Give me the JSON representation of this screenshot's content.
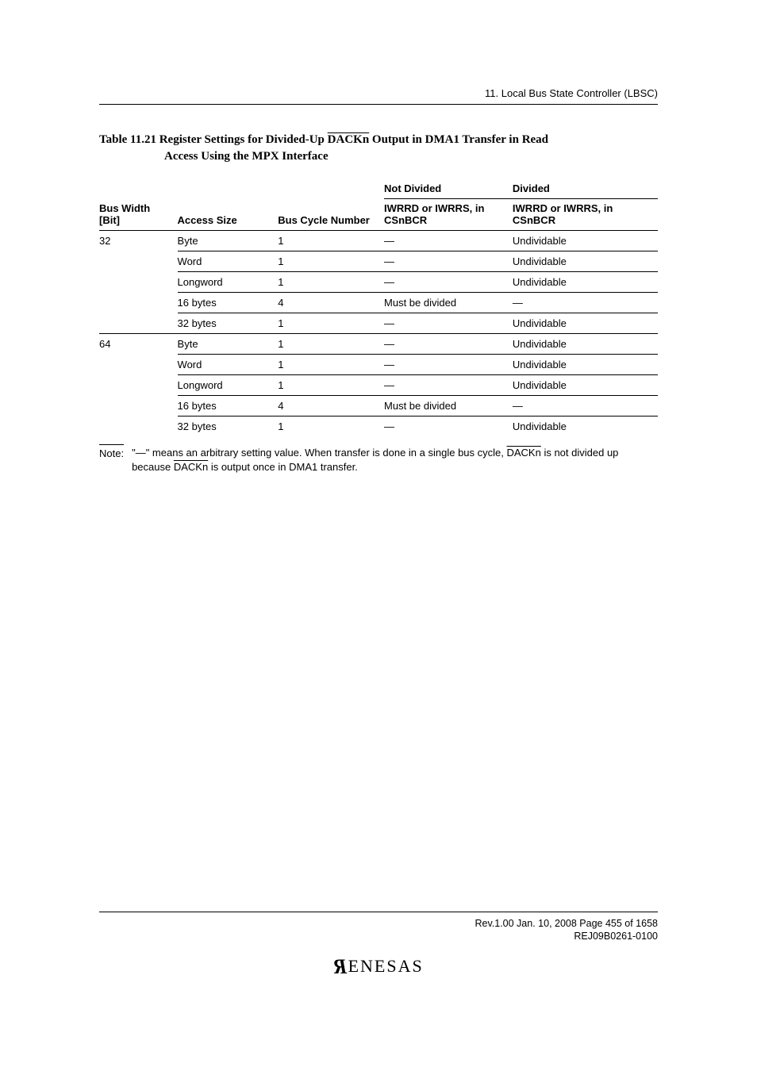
{
  "running_head": "11.   Local Bus State Controller (LBSC)",
  "caption": {
    "prefix": "Table 11.21  Register Settings for Divided-Up ",
    "overline1": "DACKn",
    "suffix1": " Output in DMA1 Transfer in Read",
    "line2": "Access Using the MPX Interface"
  },
  "headers": {
    "sup_not_divided": "Not Divided",
    "sup_divided": "Divided",
    "bus_width": "Bus Width [Bit]",
    "access_size": "Access Size",
    "bus_cycle_number": "Bus Cycle Number",
    "iwrrd_not": "IWRRD or IWRRS, in CSnBCR",
    "iwrrd_div": "IWRRD or IWRRS, in CSnBCR"
  },
  "mdash": "—",
  "undividable": "Undividable",
  "must_be_divided": "Must be divided",
  "rows": [
    {
      "bw": "32",
      "as": "Byte",
      "bcn": "1",
      "nd": "—",
      "dv": "Undividable"
    },
    {
      "bw": "",
      "as": "Word",
      "bcn": "1",
      "nd": "—",
      "dv": "Undividable"
    },
    {
      "bw": "",
      "as": "Longword",
      "bcn": "1",
      "nd": "—",
      "dv": "Undividable"
    },
    {
      "bw": "",
      "as": "16 bytes",
      "bcn": "4",
      "nd": "Must be divided",
      "dv": "—"
    },
    {
      "bw": "",
      "as": "32 bytes",
      "bcn": "1",
      "nd": "—",
      "dv": "Undividable"
    },
    {
      "bw": "64",
      "as": "Byte",
      "bcn": "1",
      "nd": "—",
      "dv": "Undividable"
    },
    {
      "bw": "",
      "as": "Word",
      "bcn": "1",
      "nd": "—",
      "dv": "Undividable"
    },
    {
      "bw": "",
      "as": "Longword",
      "bcn": "1",
      "nd": "—",
      "dv": "Undividable"
    },
    {
      "bw": "",
      "as": "16 bytes",
      "bcn": "4",
      "nd": "Must be divided",
      "dv": "—"
    },
    {
      "bw": "",
      "as": "32 bytes",
      "bcn": "1",
      "nd": "—",
      "dv": "Undividable"
    }
  ],
  "note": {
    "label": "Note:",
    "part1": "\"—\" means an arbitrary setting value. When transfer is done in a single bus cycle, ",
    "over1": "DACKn",
    "part2": " is not divided up because ",
    "over2": "DACKn",
    "part3": " is output once in DMA1 transfer."
  },
  "footer": {
    "line1": "Rev.1.00  Jan. 10, 2008  Page 455 of 1658",
    "line2": "REJ09B0261-0100",
    "logo_rest": "ENESAS"
  }
}
